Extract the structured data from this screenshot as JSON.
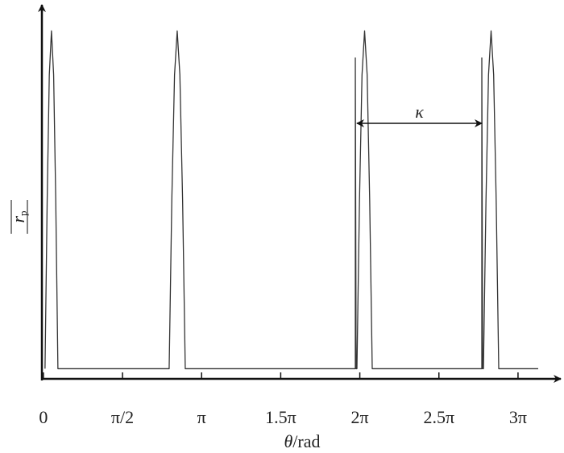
{
  "chart_data": {
    "type": "line",
    "xlabel": {
      "symbol": "θ",
      "unit": "/rad"
    },
    "ylabel": {
      "base": "r",
      "subscript": "p"
    },
    "annotation": "κ",
    "color": "#333333",
    "x": [
      0.032,
      0.075,
      0.117,
      0.16,
      0.203,
      0.245,
      0.288,
      2.497,
      2.55,
      2.604,
      2.657,
      2.71,
      2.764,
      2.817,
      6.194,
      6.194,
      6.21,
      6.226,
      6.277,
      6.327,
      6.378,
      6.429,
      6.479,
      6.53,
      8.706,
      8.706,
      8.722,
      8.738,
      8.789,
      8.839,
      8.89,
      8.941,
      8.991,
      9.042,
      9.826
    ],
    "values": [
      0,
      0.5,
      0.87,
      1,
      0.87,
      0.5,
      0,
      0,
      0.5,
      0.87,
      1,
      0.87,
      0.5,
      0,
      0,
      0.92,
      0,
      0,
      0.5,
      0.87,
      1,
      0.87,
      0.5,
      0,
      0,
      0.92,
      0,
      0,
      0.5,
      0.87,
      1,
      0.87,
      0.5,
      0,
      0
    ],
    "xlim": [
      -0.03,
      10.21
    ],
    "ylim": [
      -0.03,
      1.07
    ],
    "xticks": [
      0,
      {
        "value": 1.5708,
        "label": "π/2"
      },
      {
        "value": 3.1416,
        "label": "π"
      },
      {
        "value": 4.7124,
        "label": "1.5π"
      },
      {
        "value": 6.2832,
        "label": "2π"
      },
      {
        "value": 7.854,
        "label": "2.5π"
      },
      {
        "value": 9.4248,
        "label": "3π"
      }
    ],
    "grid": false
  }
}
